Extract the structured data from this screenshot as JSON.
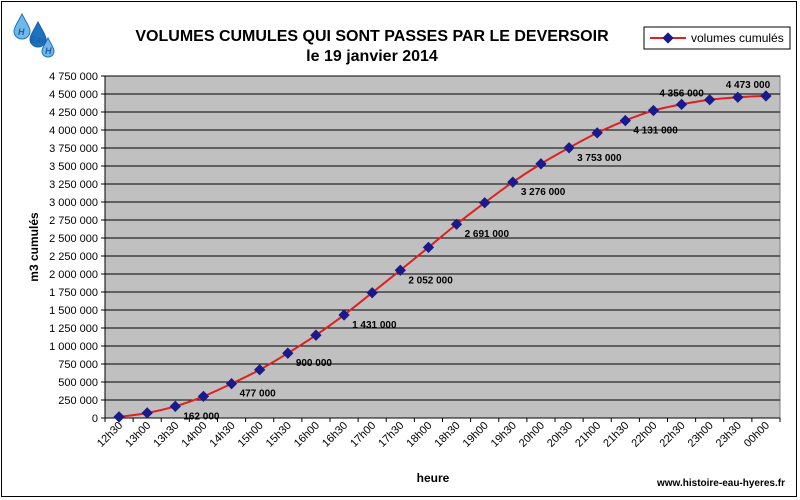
{
  "logo": {
    "letters": [
      "H",
      "Eau",
      "H"
    ],
    "colors": {
      "drop_dark": "#1e73be",
      "drop_light": "#6fb8e8",
      "text": "#1b5fa8"
    }
  },
  "footer": {
    "url": "www.histoire-eau-hyeres.fr"
  },
  "chart_data": {
    "type": "line",
    "title_line1": "VOLUMES CUMULES QUI SONT PASSES PAR LE DEVERSOIR",
    "title_line2": "le 19 janvier 2014",
    "xlabel": "heure",
    "ylabel": "m3 cumulés",
    "ylim": [
      0,
      4750000
    ],
    "y_ticks": [
      0,
      250000,
      500000,
      750000,
      1000000,
      1250000,
      1500000,
      1750000,
      2000000,
      2250000,
      2500000,
      2750000,
      3000000,
      3250000,
      3500000,
      3750000,
      4000000,
      4250000,
      4500000,
      4750000
    ],
    "y_tick_labels": [
      "0",
      "250 000",
      "500 000",
      "750 000",
      "1 000 000",
      "1 250 000",
      "1 500 000",
      "1 750 000",
      "2 000 000",
      "2 250 000",
      "2 500 000",
      "2 750 000",
      "3 000 000",
      "3 250 000",
      "3 500 000",
      "3 750 000",
      "4 000 000",
      "4 250 000",
      "4 500 000",
      "4 750 000"
    ],
    "categories": [
      "12h30",
      "13h00",
      "13h30",
      "14h00",
      "14h30",
      "15h00",
      "15h30",
      "16h00",
      "16h30",
      "17h00",
      "17h30",
      "18h00",
      "18h30",
      "19h00",
      "19h30",
      "20h00",
      "20h30",
      "21h00",
      "21h30",
      "22h00",
      "22h30",
      "23h00",
      "23h30",
      "00h00"
    ],
    "grid": true,
    "legend_position": "top-right",
    "plot_background": "#c0c0c0",
    "colors": {
      "line": "#e02020",
      "marker": "#1a1a8c"
    },
    "series": [
      {
        "name": "volumes cumulés",
        "values": [
          15000,
          70000,
          162000,
          300000,
          477000,
          670000,
          900000,
          1150000,
          1431000,
          1740000,
          2052000,
          2370000,
          2691000,
          2990000,
          3276000,
          3530000,
          3753000,
          3960000,
          4131000,
          4270000,
          4356000,
          4420000,
          4455000,
          4473000
        ]
      }
    ],
    "data_labels": [
      {
        "index": 2,
        "text": "162 000"
      },
      {
        "index": 4,
        "text": "477 000"
      },
      {
        "index": 6,
        "text": "900 000"
      },
      {
        "index": 8,
        "text": "1 431 000"
      },
      {
        "index": 10,
        "text": "2 052 000"
      },
      {
        "index": 12,
        "text": "2 691 000"
      },
      {
        "index": 14,
        "text": "3 276 000"
      },
      {
        "index": 16,
        "text": "3 753 000"
      },
      {
        "index": 18,
        "text": "4 131 000"
      },
      {
        "index": 20,
        "text": "4 356 000"
      },
      {
        "index": 23,
        "text": "4 473 000"
      }
    ]
  }
}
